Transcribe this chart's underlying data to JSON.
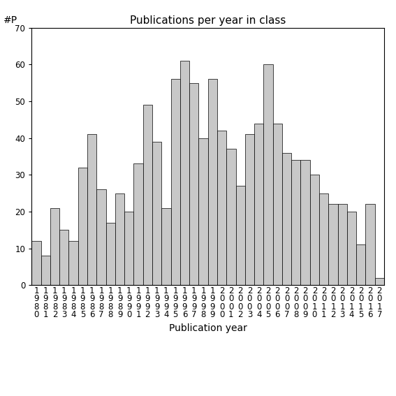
{
  "title": "Publications per year in class",
  "xlabel": "Publication year",
  "ylabel": "#P",
  "years": [
    1980,
    1981,
    1982,
    1983,
    1984,
    1985,
    1986,
    1987,
    1988,
    1989,
    1990,
    1991,
    1992,
    1993,
    1994,
    1995,
    1996,
    1997,
    1998,
    1999,
    2000,
    2001,
    2002,
    2003,
    2004,
    2005,
    2006,
    2007,
    2008,
    2009,
    2010,
    2011,
    2012,
    2013,
    2014,
    2015,
    2016,
    2017
  ],
  "values": [
    12,
    8,
    21,
    15,
    12,
    32,
    41,
    26,
    17,
    25,
    20,
    33,
    49,
    39,
    21,
    56,
    61,
    55,
    40,
    56,
    42,
    37,
    27,
    41,
    44,
    60,
    44,
    36,
    34,
    34,
    30,
    25,
    22,
    22,
    20,
    11,
    22,
    2
  ],
  "bar_color": "#c8c8c8",
  "bar_edge_color": "#000000",
  "ylim": [
    0,
    70
  ],
  "yticks": [
    0,
    10,
    20,
    30,
    40,
    50,
    60,
    70
  ],
  "background_color": "#ffffff",
  "title_fontsize": 11,
  "label_fontsize": 10,
  "tick_fontsize": 8.5
}
